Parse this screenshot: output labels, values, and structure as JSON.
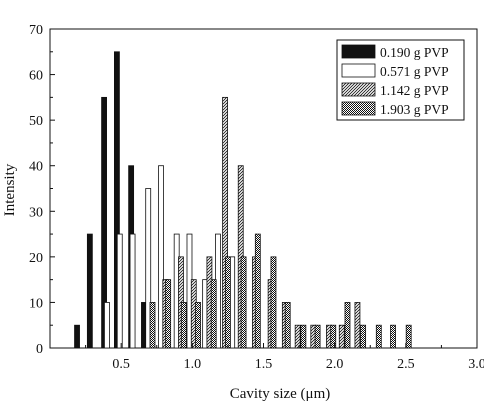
{
  "chart_data": {
    "type": "bar",
    "xlabel": "Cavity size (μm)",
    "ylabel": "Intensity",
    "xlim": [
      0.0,
      3.0
    ],
    "ylim": [
      0,
      70
    ],
    "xticks": [
      "0.5",
      "1.0",
      "1.5",
      "2.0",
      "2.5",
      "3.0"
    ],
    "yticks": [
      "0",
      "10",
      "20",
      "30",
      "40",
      "50",
      "60",
      "70"
    ],
    "legend_position": "top-right",
    "series": [
      {
        "name": "0.190 g PVP",
        "pattern": "solid",
        "x": [
          0.19,
          0.28,
          0.38,
          0.47,
          0.57,
          0.66
        ],
        "values": [
          5,
          25,
          55,
          65,
          40,
          10
        ]
      },
      {
        "name": "0.571 g PVP",
        "pattern": "white",
        "x": [
          0.4,
          0.49,
          0.58,
          0.69,
          0.78,
          0.89,
          0.98,
          1.09,
          1.18,
          1.28
        ],
        "values": [
          10,
          25,
          25,
          35,
          40,
          25,
          25,
          15,
          25,
          20
        ]
      },
      {
        "name": "1.142 g PVP",
        "pattern": "hatched",
        "x": [
          0.81,
          0.92,
          1.01,
          1.12,
          1.23,
          1.34,
          1.44,
          1.55,
          1.65,
          1.74,
          1.85,
          1.96,
          2.05,
          2.16
        ],
        "values": [
          15,
          20,
          15,
          20,
          55,
          40,
          20,
          15,
          10,
          5,
          5,
          5,
          5,
          10
        ]
      },
      {
        "name": "1.903 g PVP",
        "pattern": "crosshatch",
        "x": [
          0.72,
          0.83,
          0.94,
          1.04,
          1.15,
          1.25,
          1.36,
          1.46,
          1.57,
          1.67,
          1.78,
          1.88,
          1.99,
          2.09,
          2.2,
          2.31,
          2.41,
          2.52
        ],
        "values": [
          10,
          15,
          10,
          10,
          15,
          20,
          20,
          25,
          20,
          10,
          5,
          5,
          5,
          10,
          5,
          5,
          5,
          5
        ]
      }
    ]
  }
}
